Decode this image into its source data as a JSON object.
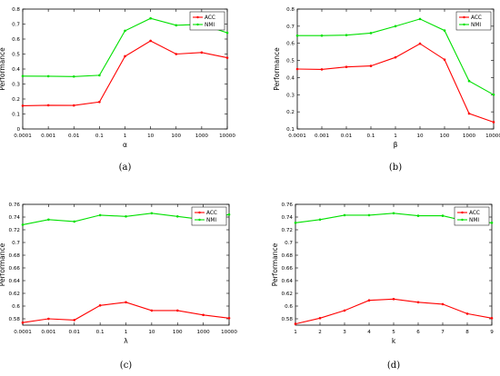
{
  "colors": {
    "acc": "#ff0000",
    "nmi": "#00e000"
  },
  "chart_data": [
    {
      "type": "line",
      "caption": "(a)",
      "xlabel": "α",
      "ylabel": "Performance",
      "categories": [
        "0.0001",
        "0.001",
        "0.01",
        "0.1",
        "1",
        "10",
        "100",
        "1000",
        "10000"
      ],
      "ylim": [
        0,
        0.8
      ],
      "yticks": [
        "0",
        "0.1",
        "0.2",
        "0.3",
        "0.4",
        "0.5",
        "0.6",
        "0.7",
        "0.8"
      ],
      "legend": "top-right",
      "series": [
        {
          "name": "ACC",
          "values": [
            0.155,
            0.158,
            0.157,
            0.18,
            0.485,
            0.588,
            0.5,
            0.51,
            0.475
          ]
        },
        {
          "name": "NMI",
          "values": [
            0.353,
            0.352,
            0.35,
            0.358,
            0.655,
            0.738,
            0.692,
            0.698,
            0.642
          ]
        }
      ]
    },
    {
      "type": "line",
      "caption": "(b)",
      "xlabel": "β",
      "ylabel": "Performance",
      "categories": [
        "0.0001",
        "0.001",
        "0.01",
        "0.1",
        "1",
        "10",
        "100",
        "1000",
        "10000"
      ],
      "ylim": [
        0.1,
        0.8
      ],
      "yticks": [
        "0.1",
        "0.2",
        "0.3",
        "0.4",
        "0.5",
        "0.6",
        "0.7",
        "0.8"
      ],
      "legend": "top-right",
      "series": [
        {
          "name": "ACC",
          "values": [
            0.45,
            0.448,
            0.462,
            0.468,
            0.518,
            0.598,
            0.505,
            0.19,
            0.14
          ]
        },
        {
          "name": "NMI",
          "values": [
            0.645,
            0.645,
            0.648,
            0.66,
            0.7,
            0.742,
            0.675,
            0.38,
            0.3
          ]
        }
      ]
    },
    {
      "type": "line",
      "caption": "(c)",
      "xlabel": "λ",
      "ylabel": "Performance",
      "categories": [
        "0.0001",
        "0.001",
        "0.01",
        "0.1",
        "1",
        "10",
        "100",
        "1000",
        "10000"
      ],
      "ylim": [
        0.57,
        0.76
      ],
      "yticks": [
        "0.58",
        "0.6",
        "0.62",
        "0.64",
        "0.66",
        "0.68",
        "0.7",
        "0.72",
        "0.74",
        "0.76"
      ],
      "legend": "top-right",
      "series": [
        {
          "name": "ACC",
          "values": [
            0.574,
            0.58,
            0.578,
            0.601,
            0.606,
            0.593,
            0.593,
            0.586,
            0.581
          ]
        },
        {
          "name": "NMI",
          "values": [
            0.728,
            0.736,
            0.733,
            0.743,
            0.741,
            0.746,
            0.741,
            0.736,
            0.744
          ]
        }
      ]
    },
    {
      "type": "line",
      "caption": "(d)",
      "xlabel": "k",
      "ylabel": "Performance",
      "categories": [
        "1",
        "2",
        "3",
        "4",
        "5",
        "6",
        "7",
        "8",
        "9"
      ],
      "ylim": [
        0.57,
        0.76
      ],
      "yticks": [
        "0.58",
        "0.6",
        "0.62",
        "0.64",
        "0.66",
        "0.68",
        "0.7",
        "0.72",
        "0.74",
        "0.76"
      ],
      "legend": "top-right",
      "series": [
        {
          "name": "ACC",
          "values": [
            0.572,
            0.581,
            0.593,
            0.609,
            0.611,
            0.606,
            0.603,
            0.588,
            0.581
          ]
        },
        {
          "name": "NMI",
          "values": [
            0.731,
            0.736,
            0.743,
            0.743,
            0.746,
            0.742,
            0.742,
            0.733,
            0.731
          ]
        }
      ]
    }
  ]
}
